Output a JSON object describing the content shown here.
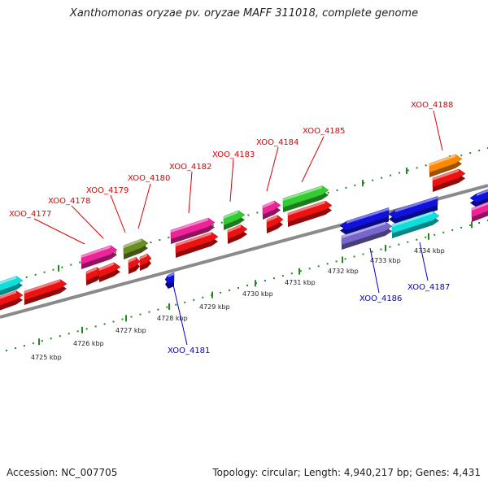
{
  "title": "Xanthomonas oryzae pv. oryzae MAFF 311018, complete genome",
  "footer": {
    "accession": "Accession: NC_007705",
    "summary": "Topology: circular; Length: 4,940,217 bp; Genes: 4,431"
  },
  "colors": {
    "upper_label": "#dd0000",
    "lower_label": "#0000cc",
    "ruler": "#228822",
    "backbone": "#8a8a8a"
  },
  "upper_labels": [
    {
      "id": "XOO_4177"
    },
    {
      "id": "XOO_4178"
    },
    {
      "id": "XOO_4179"
    },
    {
      "id": "XOO_4180"
    },
    {
      "id": "XOO_4182"
    },
    {
      "id": "XOO_4183"
    },
    {
      "id": "XOO_4184"
    },
    {
      "id": "XOO_4185"
    },
    {
      "id": "XOO_4188"
    }
  ],
  "lower_labels": [
    {
      "id": "XOO_4181"
    },
    {
      "id": "XOO_4186"
    },
    {
      "id": "XOO_4187"
    }
  ],
  "kbp_ticks": [
    {
      "text": "4725 kbp"
    },
    {
      "text": "4726 kbp"
    },
    {
      "text": "4727 kbp"
    },
    {
      "text": "4728 kbp"
    },
    {
      "text": "4729 kbp"
    },
    {
      "text": "4730 kbp"
    },
    {
      "text": "4731 kbp"
    },
    {
      "text": "4732 kbp"
    },
    {
      "text": "4733 kbp"
    },
    {
      "text": "4734 kbp"
    }
  ],
  "gene_colors": {
    "red": "#ee1111",
    "magenta": "#ee2299",
    "olive": "#6b8e23",
    "green": "#33cc33",
    "cyan": "#11dddd",
    "blue": "#1111dd",
    "purple": "#7766cc",
    "orange": "#ff8800"
  }
}
